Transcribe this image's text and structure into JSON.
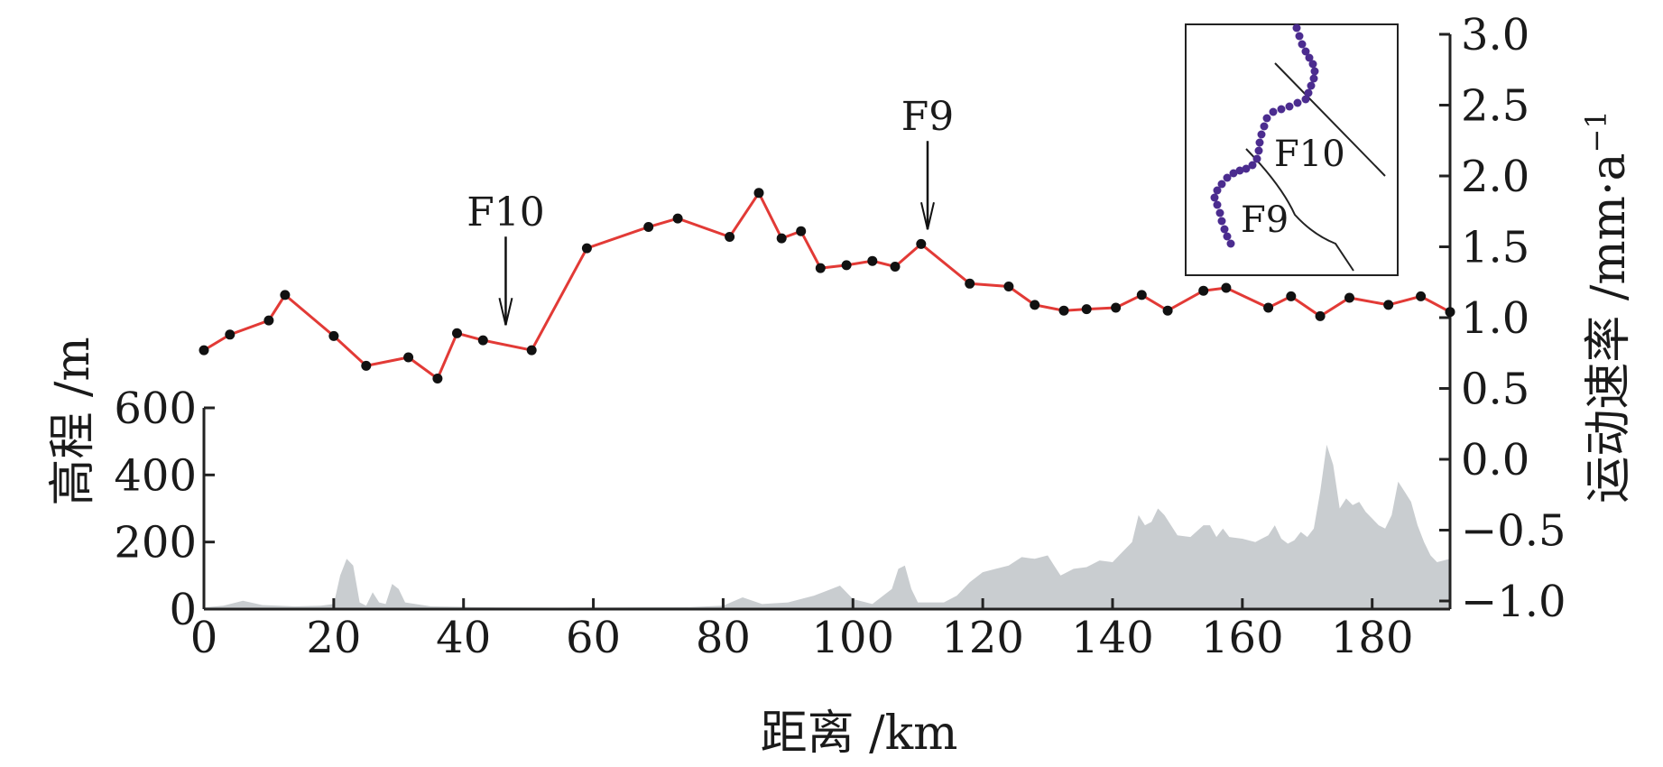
{
  "chart_data": {
    "type": "line",
    "xlabel": "距离 /km",
    "xlim": [
      0,
      192
    ],
    "x_ticks": [
      "0",
      "20",
      "40",
      "60",
      "80",
      "100",
      "120",
      "140",
      "160",
      "180"
    ],
    "colors": {
      "rate_line": "#e23a36",
      "rate_marker": "#111111",
      "elevation_fill": "#c9cdd0",
      "inset_track": "#4b2c8f"
    },
    "series": [
      {
        "id": "rate",
        "axis": "right",
        "points": [
          [
            0,
            0.77
          ],
          [
            4,
            0.88
          ],
          [
            10,
            0.98
          ],
          [
            12.5,
            1.16
          ],
          [
            20,
            0.87
          ],
          [
            25,
            0.66
          ],
          [
            31.5,
            0.72
          ],
          [
            36,
            0.57
          ],
          [
            39,
            0.89
          ],
          [
            43,
            0.84
          ],
          [
            50.5,
            0.77
          ],
          [
            59,
            1.49
          ],
          [
            68.5,
            1.64
          ],
          [
            73,
            1.7
          ],
          [
            81,
            1.57
          ],
          [
            85.5,
            1.88
          ],
          [
            89,
            1.56
          ],
          [
            92,
            1.61
          ],
          [
            95,
            1.35
          ],
          [
            99,
            1.37
          ],
          [
            103,
            1.4
          ],
          [
            106.5,
            1.36
          ],
          [
            110.5,
            1.52
          ],
          [
            118,
            1.24
          ],
          [
            124,
            1.22
          ],
          [
            128,
            1.09
          ],
          [
            132.5,
            1.05
          ],
          [
            136,
            1.06
          ],
          [
            140.5,
            1.07
          ],
          [
            144.5,
            1.16
          ],
          [
            148.5,
            1.05
          ],
          [
            154,
            1.19
          ],
          [
            157.5,
            1.21
          ],
          [
            164,
            1.07
          ],
          [
            167.5,
            1.15
          ],
          [
            172,
            1.01
          ],
          [
            176.5,
            1.14
          ],
          [
            182.5,
            1.09
          ],
          [
            187.5,
            1.15
          ],
          [
            192,
            1.04
          ]
        ]
      },
      {
        "id": "elevation",
        "axis": "left",
        "points": [
          [
            0,
            5
          ],
          [
            3,
            10
          ],
          [
            6,
            25
          ],
          [
            9,
            12
          ],
          [
            14,
            8
          ],
          [
            18,
            10
          ],
          [
            20,
            15
          ],
          [
            21,
            100
          ],
          [
            22,
            150
          ],
          [
            23,
            130
          ],
          [
            24,
            20
          ],
          [
            25,
            10
          ],
          [
            26,
            50
          ],
          [
            27,
            20
          ],
          [
            28,
            15
          ],
          [
            29,
            75
          ],
          [
            30,
            60
          ],
          [
            31,
            20
          ],
          [
            35,
            8
          ],
          [
            45,
            5
          ],
          [
            55,
            4
          ],
          [
            65,
            5
          ],
          [
            75,
            6
          ],
          [
            80,
            10
          ],
          [
            83,
            35
          ],
          [
            86,
            15
          ],
          [
            90,
            20
          ],
          [
            94,
            40
          ],
          [
            96,
            55
          ],
          [
            98,
            70
          ],
          [
            100,
            30
          ],
          [
            103,
            15
          ],
          [
            105,
            45
          ],
          [
            106,
            60
          ],
          [
            107,
            120
          ],
          [
            108,
            130
          ],
          [
            109,
            60
          ],
          [
            110,
            20
          ],
          [
            114,
            20
          ],
          [
            116,
            40
          ],
          [
            118,
            80
          ],
          [
            120,
            110
          ],
          [
            122,
            120
          ],
          [
            124,
            130
          ],
          [
            126,
            155
          ],
          [
            128,
            150
          ],
          [
            130,
            160
          ],
          [
            131,
            130
          ],
          [
            132,
            100
          ],
          [
            134,
            120
          ],
          [
            136,
            125
          ],
          [
            138,
            145
          ],
          [
            140,
            140
          ],
          [
            141,
            160
          ],
          [
            143,
            200
          ],
          [
            144,
            280
          ],
          [
            145,
            250
          ],
          [
            146,
            260
          ],
          [
            147,
            300
          ],
          [
            148,
            280
          ],
          [
            150,
            220
          ],
          [
            152,
            215
          ],
          [
            154,
            250
          ],
          [
            155,
            250
          ],
          [
            156,
            215
          ],
          [
            157,
            240
          ],
          [
            158,
            215
          ],
          [
            160,
            210
          ],
          [
            162,
            200
          ],
          [
            164,
            220
          ],
          [
            165,
            250
          ],
          [
            166,
            210
          ],
          [
            167,
            195
          ],
          [
            168,
            205
          ],
          [
            169,
            230
          ],
          [
            170,
            215
          ],
          [
            171,
            240
          ],
          [
            172,
            350
          ],
          [
            173,
            490
          ],
          [
            174,
            430
          ],
          [
            175,
            300
          ],
          [
            176,
            330
          ],
          [
            177,
            310
          ],
          [
            178,
            320
          ],
          [
            179,
            290
          ],
          [
            180,
            270
          ],
          [
            181,
            250
          ],
          [
            182,
            240
          ],
          [
            183,
            280
          ],
          [
            184,
            380
          ],
          [
            185,
            350
          ],
          [
            186,
            320
          ],
          [
            187,
            250
          ],
          [
            188,
            200
          ],
          [
            189,
            160
          ],
          [
            190,
            140
          ],
          [
            191,
            145
          ],
          [
            192,
            150
          ]
        ]
      }
    ],
    "left_axis": {
      "label": "高程 /m",
      "ylim": [
        0,
        600
      ],
      "ticks": [
        "0",
        "200",
        "400",
        "600"
      ]
    },
    "right_axis": {
      "label_prefix": "运动速率 /mm·a",
      "label_superscript": "−1",
      "ylim": [
        -1.0,
        3.0
      ],
      "ticks": [
        "−1.0",
        "−0.5",
        "0.0",
        "0.5",
        "1.0",
        "1.5",
        "2.0",
        "2.5",
        "3.0"
      ]
    },
    "annotations": [
      {
        "label": "F10",
        "x": 46.5,
        "kind": "arrow-down"
      },
      {
        "label": "F9",
        "x": 111.5,
        "kind": "arrow-down"
      }
    ],
    "inset": {
      "labels": [
        "F10",
        "F9"
      ]
    }
  }
}
